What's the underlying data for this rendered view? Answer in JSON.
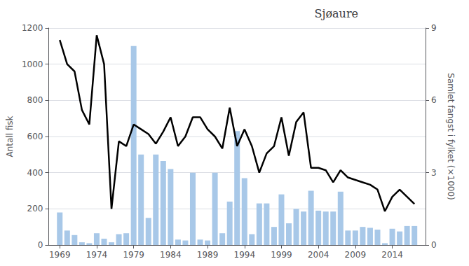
{
  "chart_data": {
    "type": "bar",
    "title": "Sjøaure",
    "x": [
      1969,
      1970,
      1971,
      1972,
      1973,
      1974,
      1975,
      1976,
      1977,
      1978,
      1979,
      1980,
      1981,
      1982,
      1983,
      1984,
      1985,
      1986,
      1987,
      1988,
      1989,
      1990,
      1991,
      1992,
      1993,
      1994,
      1995,
      1996,
      1997,
      1998,
      1999,
      2000,
      2001,
      2002,
      2003,
      2004,
      2005,
      2006,
      2007,
      2008,
      2009,
      2010,
      2011,
      2012,
      2013,
      2014,
      2015,
      2016,
      2017
    ],
    "series": [
      {
        "type": "bar",
        "color": "#a8c8e8",
        "values": [
          180,
          80,
          55,
          15,
          10,
          65,
          35,
          15,
          60,
          65,
          1100,
          500,
          150,
          500,
          465,
          420,
          30,
          25,
          400,
          30,
          25,
          400,
          65,
          240,
          630,
          370,
          60,
          230,
          230,
          100,
          280,
          120,
          200,
          185,
          300,
          190,
          185,
          185,
          295,
          80,
          80,
          100,
          95,
          85,
          10,
          90,
          75,
          105,
          105
        ]
      },
      {
        "type": "line",
        "color": "#000000",
        "axis": "y2",
        "values": [
          8.5,
          7.5,
          7.2,
          5.6,
          5.0,
          8.7,
          7.5,
          1.5,
          4.3,
          4.1,
          5.0,
          4.8,
          4.6,
          4.2,
          4.7,
          5.3,
          4.1,
          4.5,
          5.3,
          5.3,
          4.8,
          4.5,
          4.0,
          5.7,
          4.1,
          4.8,
          4.1,
          3.0,
          3.8,
          4.1,
          5.3,
          3.7,
          5.1,
          5.5,
          3.2,
          3.2,
          3.1,
          2.6,
          3.1,
          2.8,
          2.7,
          2.6,
          2.5,
          2.3,
          1.4,
          2.0,
          2.3,
          2.0,
          1.7
        ]
      }
    ],
    "ylabel": "Antall fisk",
    "y2label": "Samlet fangst i fylket (×1000)",
    "xlim": [
      1967.5,
      2018.5
    ],
    "xticks": [
      1969,
      1974,
      1979,
      1984,
      1989,
      1994,
      1999,
      2004,
      2009,
      2014
    ],
    "ylim": [
      0,
      1200
    ],
    "yticks": [
      0,
      200,
      400,
      600,
      800,
      1000,
      1200
    ],
    "y2lim": [
      0,
      9
    ],
    "y2ticks": [
      0,
      3,
      6,
      9
    ],
    "grid": true
  }
}
